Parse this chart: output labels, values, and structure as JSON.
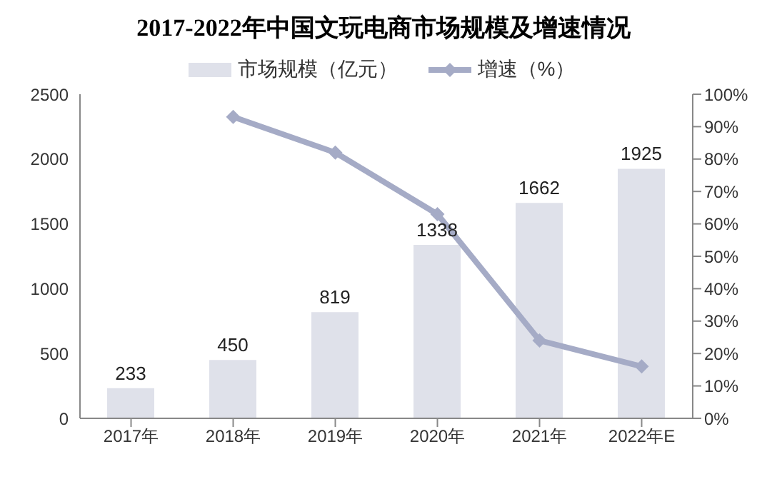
{
  "chart_data": {
    "type": "bar",
    "title": "2017-2022年中国文玩电商市场规模及增速情况",
    "categories": [
      "2017年",
      "2018年",
      "2019年",
      "2020年",
      "2021年",
      "2022年E"
    ],
    "series": [
      {
        "name": "市场规模（亿元）",
        "color": "#dfe1ea",
        "values": [
          233,
          450,
          819,
          1338,
          1662,
          1925
        ],
        "value_labels": [
          "233",
          "450",
          "819",
          "1338",
          "1662",
          "1925"
        ]
      },
      {
        "name": "增速（%）",
        "type": "line",
        "axis": "y2",
        "color": "#a5abc6",
        "marker": "diamond",
        "values": [
          null,
          93,
          82,
          63,
          24,
          16
        ]
      }
    ],
    "ylim": [
      0,
      2500
    ],
    "yticks": [
      0,
      500,
      1000,
      1500,
      2000,
      2500
    ],
    "y2lim": [
      0,
      100
    ],
    "y2ticks": [
      {
        "value": 0,
        "label": "0%"
      },
      {
        "value": 10,
        "label": "10%"
      },
      {
        "value": 20,
        "label": "20%"
      },
      {
        "value": 30,
        "label": "30%"
      },
      {
        "value": 40,
        "label": "40%"
      },
      {
        "value": 50,
        "label": "50%"
      },
      {
        "value": 60,
        "label": "60%"
      },
      {
        "value": 70,
        "label": "70%"
      },
      {
        "value": 80,
        "label": "80%"
      },
      {
        "value": 90,
        "label": "90%"
      },
      {
        "value": 100,
        "label": "100%"
      }
    ],
    "legend": "top",
    "grid": false
  }
}
